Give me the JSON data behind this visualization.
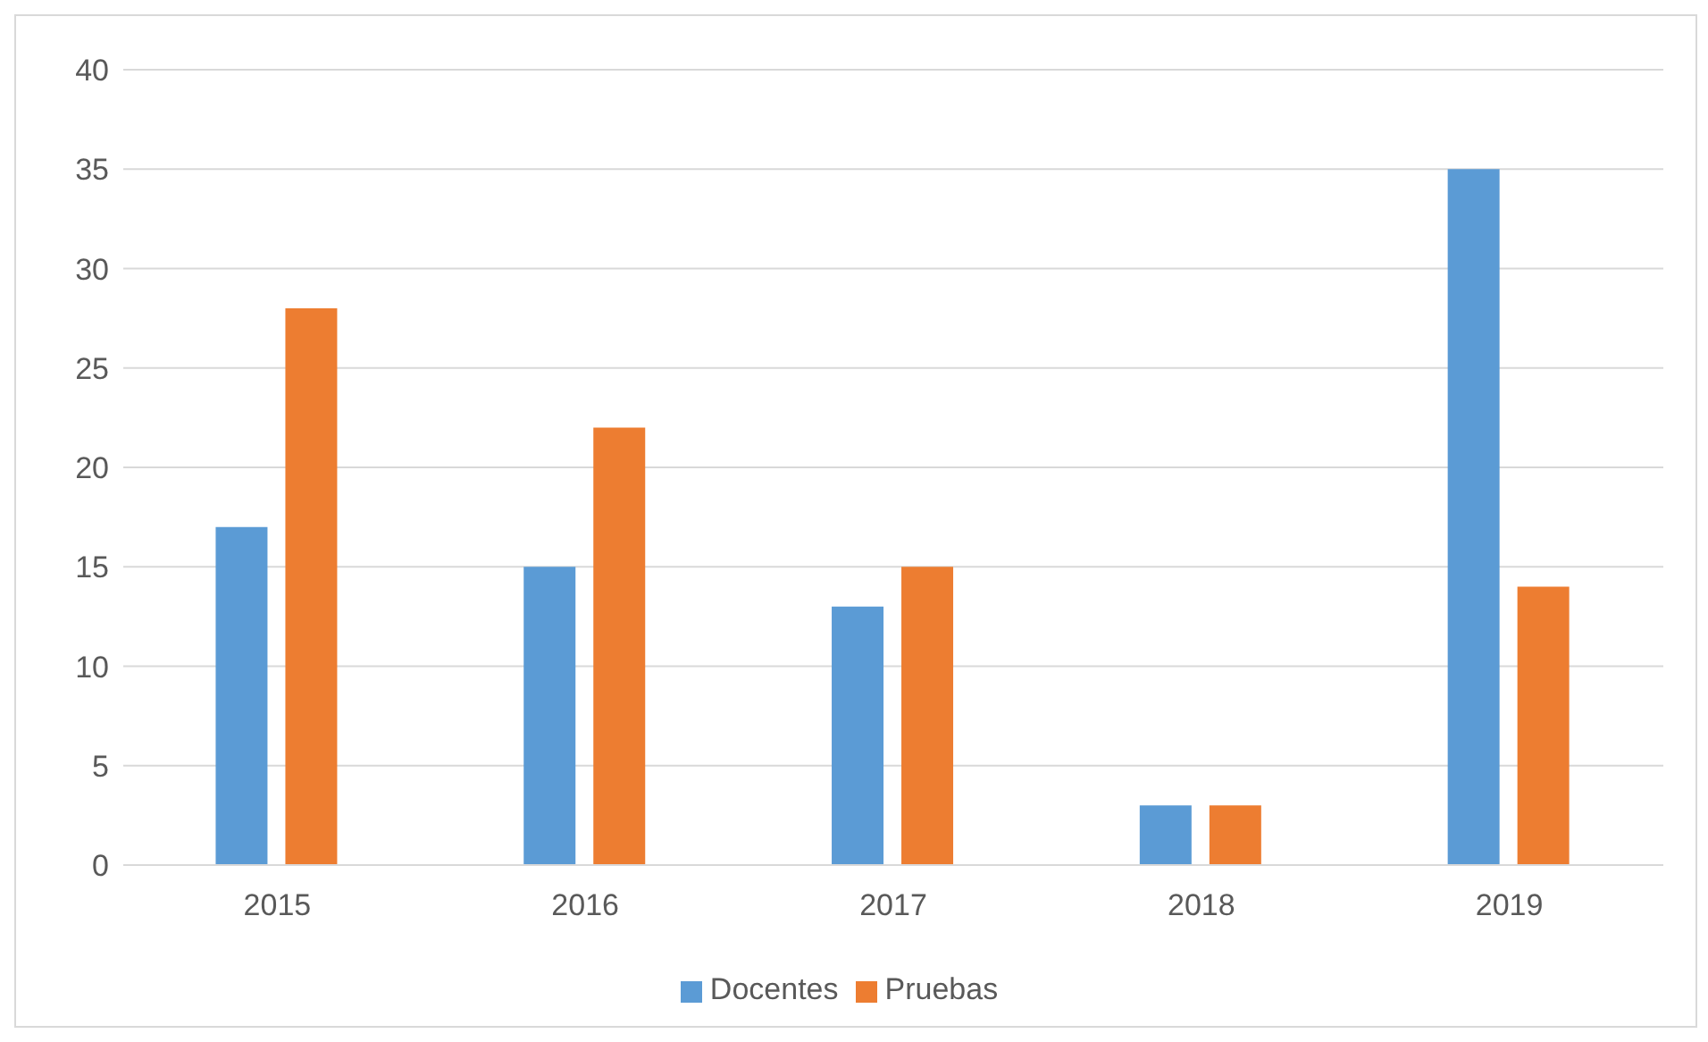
{
  "chart_data": {
    "type": "bar",
    "categories": [
      "2015",
      "2016",
      "2017",
      "2018",
      "2019"
    ],
    "series": [
      {
        "name": "Docentes",
        "color": "#5b9bd5",
        "values": [
          17,
          15,
          13,
          3,
          35
        ]
      },
      {
        "name": "Pruebas",
        "color": "#ed7d31",
        "values": [
          28,
          22,
          15,
          3,
          14
        ]
      }
    ],
    "ylim": [
      0,
      40
    ],
    "yticks": [
      0,
      5,
      10,
      15,
      20,
      25,
      30,
      35,
      40
    ],
    "grid": "y",
    "legend": "bottom"
  }
}
